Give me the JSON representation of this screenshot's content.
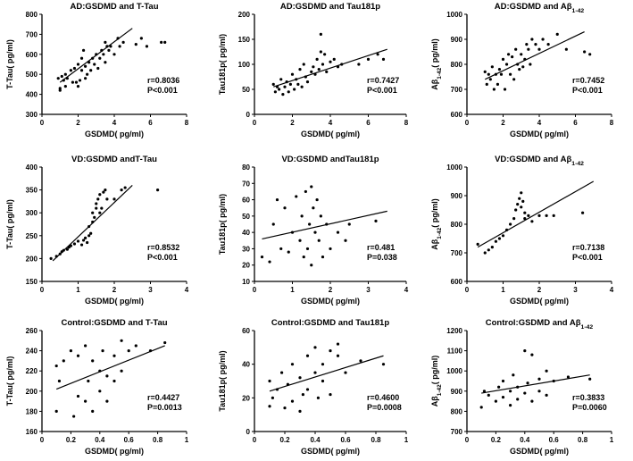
{
  "chart_data": [
    {
      "type": "scatter",
      "title": "AD:GSDMD and T-Tau",
      "xlabel": "GSDMD( pg/ml)",
      "ylabel": "T-Tau( pg/ml)",
      "xlim": [
        0,
        8
      ],
      "ylim": [
        300,
        800
      ],
      "xticks": [
        0,
        2,
        4,
        6,
        8
      ],
      "yticks": [
        300,
        400,
        500,
        600,
        700,
        800
      ],
      "stat_r": "r=0.8036",
      "stat_p": "P<0.001",
      "fit": [
        [
          1.0,
          460
        ],
        [
          5.0,
          730
        ]
      ],
      "x": [
        0.9,
        1.0,
        1.0,
        1.1,
        1.2,
        1.3,
        1.3,
        1.4,
        1.6,
        1.7,
        1.8,
        1.9,
        2.0,
        2.0,
        2.1,
        2.2,
        2.2,
        2.3,
        2.4,
        2.4,
        2.5,
        2.6,
        2.7,
        2.8,
        2.9,
        3.0,
        3.1,
        3.2,
        3.3,
        3.4,
        3.5,
        3.5,
        3.6,
        3.7,
        3.8,
        4.0,
        4.2,
        4.3,
        4.5,
        5.2,
        5.5,
        5.8,
        6.6,
        6.8
      ],
      "y": [
        480,
        420,
        430,
        490,
        470,
        440,
        500,
        480,
        520,
        460,
        530,
        460,
        550,
        440,
        470,
        580,
        520,
        620,
        480,
        540,
        500,
        560,
        520,
        580,
        550,
        600,
        530,
        580,
        620,
        600,
        660,
        560,
        640,
        620,
        640,
        600,
        680,
        640,
        660,
        650,
        680,
        640,
        660,
        660
      ]
    },
    {
      "type": "scatter",
      "title": "AD:GSDMD and Tau181p",
      "xlabel": "GSDMD( pg/ml)",
      "ylabel": "Tau181p( pg/ml)",
      "xlim": [
        0,
        8
      ],
      "ylim": [
        0,
        200
      ],
      "xticks": [
        0,
        2,
        4,
        6,
        8
      ],
      "yticks": [
        0,
        50,
        100,
        150,
        200
      ],
      "stat_r": "r=0.7427",
      "stat_p": "P<0.001",
      "fit": [
        [
          1.0,
          55
        ],
        [
          7.0,
          130
        ]
      ],
      "x": [
        1.0,
        1.1,
        1.2,
        1.3,
        1.4,
        1.5,
        1.6,
        1.7,
        1.8,
        1.9,
        2.0,
        2.1,
        2.2,
        2.3,
        2.4,
        2.5,
        2.6,
        2.7,
        2.8,
        3.0,
        3.1,
        3.2,
        3.3,
        3.4,
        3.5,
        3.5,
        3.6,
        3.7,
        3.8,
        4.0,
        4.2,
        4.4,
        4.6,
        5.5,
        6.0,
        6.5,
        6.8
      ],
      "y": [
        60,
        45,
        55,
        50,
        70,
        40,
        55,
        65,
        45,
        60,
        80,
        50,
        70,
        60,
        90,
        55,
        100,
        75,
        65,
        85,
        95,
        80,
        110,
        90,
        160,
        125,
        100,
        120,
        85,
        105,
        110,
        95,
        100,
        100,
        110,
        120,
        110
      ]
    },
    {
      "type": "scatter",
      "title": "AD:GSDMD and Aβ1-42",
      "xlabel": "GSDMD( pg/ml)",
      "ylabel": "Aβ1-42( pg/ml)",
      "xlim": [
        0,
        8
      ],
      "ylim": [
        600,
        1000
      ],
      "xticks": [
        0,
        2,
        4,
        6,
        8
      ],
      "yticks": [
        600,
        700,
        800,
        900,
        1000
      ],
      "stat_r": "r=0.7452",
      "stat_p": "P<0.001",
      "fit": [
        [
          1.0,
          740
        ],
        [
          6.5,
          930
        ]
      ],
      "x": [
        1.0,
        1.1,
        1.2,
        1.3,
        1.4,
        1.5,
        1.6,
        1.7,
        1.8,
        1.9,
        2.0,
        2.1,
        2.2,
        2.3,
        2.4,
        2.5,
        2.6,
        2.7,
        2.8,
        2.9,
        3.0,
        3.1,
        3.2,
        3.3,
        3.4,
        3.5,
        3.6,
        3.8,
        4.0,
        4.2,
        4.5,
        5.0,
        5.5,
        6.5,
        6.8
      ],
      "y": [
        770,
        720,
        760,
        740,
        790,
        700,
        760,
        720,
        780,
        760,
        820,
        700,
        800,
        840,
        760,
        830,
        740,
        860,
        800,
        780,
        840,
        790,
        820,
        880,
        860,
        800,
        900,
        880,
        860,
        900,
        880,
        920,
        860,
        850,
        840
      ]
    },
    {
      "type": "scatter",
      "title": "VD:GSDMD andT-Tau",
      "xlabel": "GSDMD( pg/ml)",
      "ylabel": "T-Tau( pg/ml)",
      "xlim": [
        0,
        4
      ],
      "ylim": [
        150,
        400
      ],
      "xticks": [
        0,
        1,
        2,
        3,
        4
      ],
      "yticks": [
        150,
        200,
        250,
        300,
        350,
        400
      ],
      "stat_r": "r=0.8532",
      "stat_p": "P<0.001",
      "fit": [
        [
          0.3,
          195
        ],
        [
          2.5,
          360
        ]
      ],
      "x": [
        0.25,
        0.4,
        0.5,
        0.55,
        0.6,
        0.7,
        0.75,
        0.8,
        0.9,
        1.0,
        1.1,
        1.15,
        1.2,
        1.25,
        1.3,
        1.3,
        1.35,
        1.4,
        1.4,
        1.45,
        1.5,
        1.5,
        1.55,
        1.6,
        1.6,
        1.65,
        1.7,
        1.75,
        1.8,
        2.0,
        2.2,
        2.3,
        3.2
      ],
      "y": [
        200,
        205,
        210,
        215,
        218,
        220,
        225,
        228,
        232,
        238,
        230,
        240,
        245,
        235,
        250,
        270,
        255,
        280,
        300,
        290,
        310,
        320,
        330,
        300,
        340,
        310,
        345,
        350,
        330,
        330,
        350,
        355,
        350
      ]
    },
    {
      "type": "scatter",
      "title": "VD:GSDMD andTau181p",
      "xlabel": "GSDMD( pg/ml)",
      "ylabel": "Tau181p( pg/ml)",
      "xlim": [
        0,
        4
      ],
      "ylim": [
        10,
        80
      ],
      "xticks": [
        0,
        1,
        2,
        3,
        4
      ],
      "yticks": [
        10,
        20,
        30,
        40,
        50,
        60,
        70,
        80
      ],
      "stat_r": "r=0.481",
      "stat_p": "P=0.038",
      "fit": [
        [
          0.2,
          36
        ],
        [
          3.5,
          53
        ]
      ],
      "x": [
        0.2,
        0.4,
        0.5,
        0.6,
        0.7,
        0.8,
        0.9,
        1.0,
        1.1,
        1.2,
        1.25,
        1.3,
        1.35,
        1.4,
        1.45,
        1.5,
        1.5,
        1.55,
        1.6,
        1.65,
        1.7,
        1.75,
        1.8,
        1.9,
        2.0,
        2.2,
        2.4,
        2.5,
        3.2
      ],
      "y": [
        25,
        22,
        45,
        60,
        30,
        55,
        28,
        40,
        62,
        35,
        50,
        25,
        65,
        30,
        45,
        68,
        20,
        55,
        40,
        60,
        35,
        50,
        25,
        45,
        30,
        40,
        35,
        45,
        47
      ]
    },
    {
      "type": "scatter",
      "title": "VD:GSDMD and Aβ1-42",
      "xlabel": "GSDMD( pg/ml)",
      "ylabel": "Aβ1-42( pg/ml)",
      "xlim": [
        0,
        4
      ],
      "ylim": [
        600,
        1000
      ],
      "xticks": [
        0,
        1,
        2,
        3,
        4
      ],
      "yticks": [
        600,
        700,
        800,
        900,
        1000
      ],
      "stat_r": "r=0.7138",
      "stat_p": "P<0.001",
      "fit": [
        [
          0.3,
          720
        ],
        [
          3.5,
          950
        ]
      ],
      "x": [
        0.3,
        0.5,
        0.6,
        0.7,
        0.8,
        0.9,
        1.0,
        1.1,
        1.2,
        1.3,
        1.35,
        1.4,
        1.45,
        1.5,
        1.5,
        1.55,
        1.6,
        1.6,
        1.7,
        1.8,
        2.0,
        2.2,
        2.4,
        3.2
      ],
      "y": [
        730,
        700,
        710,
        720,
        740,
        750,
        760,
        780,
        800,
        820,
        850,
        870,
        890,
        910,
        860,
        880,
        840,
        820,
        830,
        810,
        830,
        830,
        830,
        840
      ]
    },
    {
      "type": "scatter",
      "title": "Control:GSDMD and T-Tau",
      "xlabel": "GSDMD( pg/ml)",
      "ylabel": "T-Tau( pg/ml)",
      "xlim": [
        0,
        1.0
      ],
      "ylim": [
        160,
        260
      ],
      "xticks": [
        0,
        0.2,
        0.4,
        0.6,
        0.8,
        1.0
      ],
      "yticks": [
        160,
        180,
        200,
        220,
        240,
        260
      ],
      "stat_r": "r=0.4427",
      "stat_p": "P=0.0013",
      "fit": [
        [
          0.1,
          202
        ],
        [
          0.85,
          245
        ]
      ],
      "x": [
        0.1,
        0.1,
        0.12,
        0.15,
        0.2,
        0.22,
        0.25,
        0.25,
        0.3,
        0.3,
        0.32,
        0.35,
        0.35,
        0.4,
        0.4,
        0.42,
        0.45,
        0.45,
        0.5,
        0.5,
        0.55,
        0.55,
        0.6,
        0.65,
        0.75,
        0.85
      ],
      "y": [
        180,
        225,
        210,
        230,
        240,
        175,
        195,
        235,
        190,
        245,
        210,
        180,
        230,
        220,
        200,
        240,
        215,
        190,
        235,
        210,
        250,
        220,
        240,
        245,
        240,
        248
      ]
    },
    {
      "type": "scatter",
      "title": "Control:GSDMD and Tau181p",
      "xlabel": "GSDMD( pg/ml)",
      "ylabel": "Tau181p( pg/ml)",
      "xlim": [
        0,
        1.0
      ],
      "ylim": [
        0,
        60
      ],
      "xticks": [
        0,
        0.2,
        0.4,
        0.6,
        0.8,
        1.0
      ],
      "yticks": [
        0,
        20,
        40,
        60
      ],
      "stat_r": "r=0.4600",
      "stat_p": "P=0.0008",
      "fit": [
        [
          0.1,
          24
        ],
        [
          0.85,
          45
        ]
      ],
      "x": [
        0.1,
        0.1,
        0.12,
        0.15,
        0.18,
        0.2,
        0.22,
        0.25,
        0.25,
        0.3,
        0.3,
        0.32,
        0.35,
        0.35,
        0.4,
        0.4,
        0.42,
        0.45,
        0.45,
        0.5,
        0.5,
        0.55,
        0.55,
        0.6,
        0.7,
        0.85
      ],
      "y": [
        15,
        30,
        20,
        25,
        35,
        14,
        28,
        18,
        40,
        12,
        32,
        22,
        45,
        25,
        35,
        50,
        20,
        40,
        30,
        48,
        22,
        45,
        52,
        35,
        42,
        40
      ]
    },
    {
      "type": "scatter",
      "title": "Control:GSDMD and Aβ1-42",
      "xlabel": "GSDMD( pg/ml)",
      "ylabel": "Aβ1-42( pg/ml)",
      "xlim": [
        0,
        1.0
      ],
      "ylim": [
        700,
        1200
      ],
      "xticks": [
        0,
        0.2,
        0.4,
        0.6,
        0.8,
        1.0
      ],
      "yticks": [
        700,
        800,
        900,
        1000,
        1100,
        1200
      ],
      "stat_r": "r=0.3833",
      "stat_p": "P=0.0060",
      "fit": [
        [
          0.1,
          890
        ],
        [
          0.85,
          980
        ]
      ],
      "x": [
        0.1,
        0.12,
        0.15,
        0.2,
        0.22,
        0.25,
        0.25,
        0.3,
        0.3,
        0.32,
        0.35,
        0.35,
        0.4,
        0.4,
        0.42,
        0.45,
        0.45,
        0.5,
        0.5,
        0.55,
        0.55,
        0.6,
        0.7,
        0.85
      ],
      "y": [
        820,
        900,
        880,
        850,
        920,
        870,
        950,
        830,
        900,
        980,
        860,
        920,
        1100,
        890,
        940,
        850,
        1080,
        900,
        960,
        880,
        1000,
        950,
        970,
        960
      ]
    }
  ]
}
